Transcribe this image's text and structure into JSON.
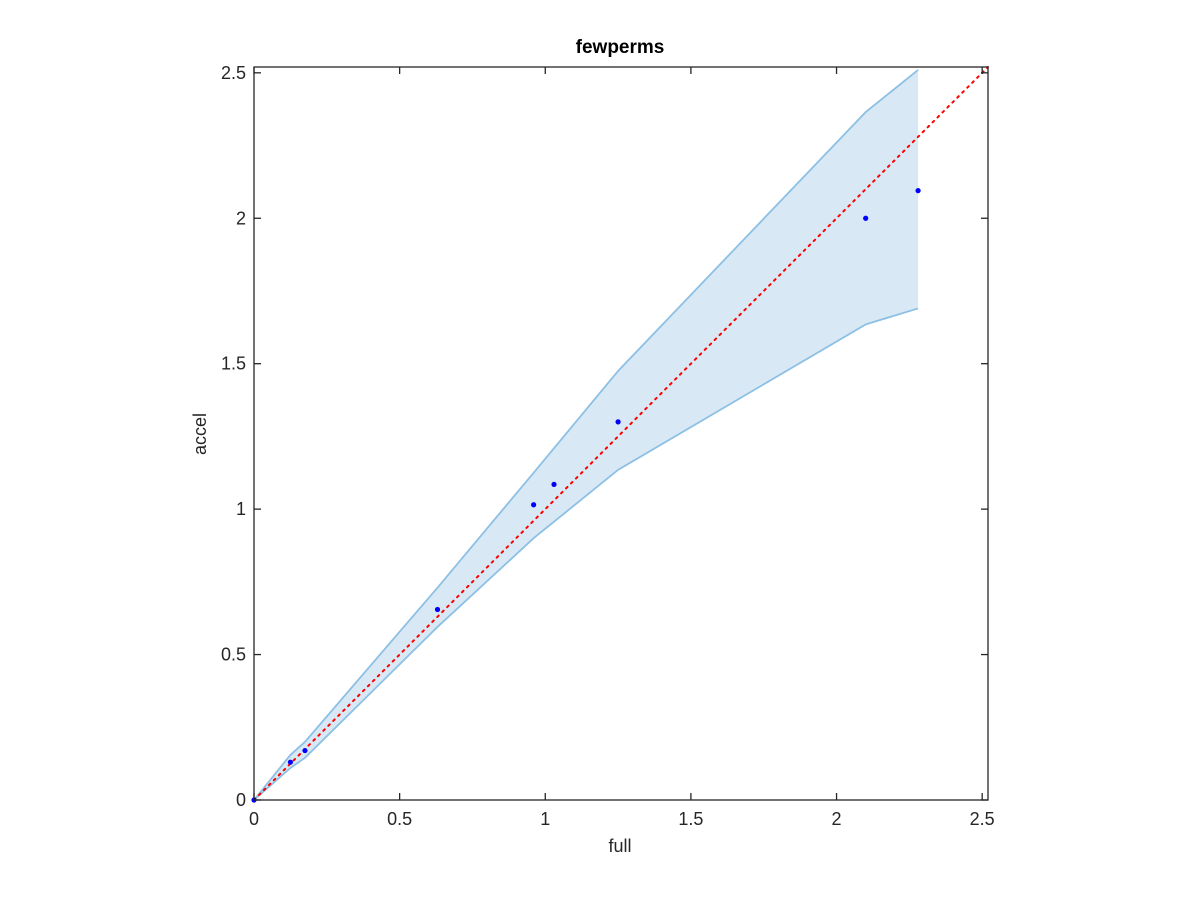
{
  "chart_data": {
    "type": "scatter",
    "title": "fewperms",
    "xlabel": "full",
    "ylabel": "accel",
    "xlim": [
      0,
      2.52
    ],
    "ylim": [
      0,
      2.52
    ],
    "xticks": [
      0,
      0.5,
      1,
      1.5,
      2,
      2.5
    ],
    "yticks": [
      0,
      0.5,
      1,
      1.5,
      2,
      2.5
    ],
    "grid": false,
    "points": {
      "x": [
        0,
        0.125,
        0.175,
        0.63,
        0.96,
        1.03,
        1.25,
        2.1,
        2.28
      ],
      "y": [
        0,
        0.13,
        0.17,
        0.655,
        1.015,
        1.085,
        1.3,
        2.0,
        2.095
      ]
    },
    "band": {
      "x": [
        0,
        0.125,
        0.175,
        0.63,
        0.96,
        1.25,
        2.1,
        2.28
      ],
      "upper": [
        0,
        0.155,
        0.2,
        0.73,
        1.125,
        1.475,
        2.365,
        2.51
      ],
      "lower": [
        0,
        0.11,
        0.145,
        0.595,
        0.9,
        1.135,
        1.635,
        1.69
      ]
    },
    "reference_line": {
      "x": [
        0,
        2.52
      ],
      "y": [
        0,
        2.52
      ],
      "style": "dotted"
    },
    "colors": {
      "points": "#0000ff",
      "band_fill": "#d9e8f5",
      "band_edge": "#8cc0e4",
      "reference_line": "#ff0000",
      "axes": "#262626"
    }
  }
}
